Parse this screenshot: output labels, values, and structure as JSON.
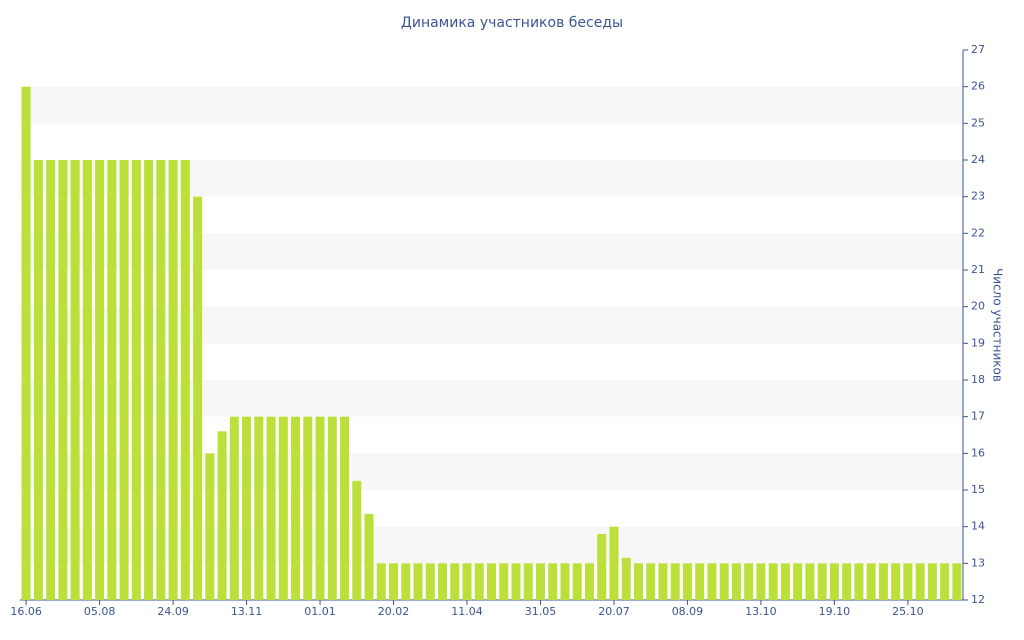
{
  "chart_data": {
    "type": "bar",
    "title": "Динамика участников беседы",
    "y_label": "Число участников",
    "categories": [
      "16.06",
      null,
      null,
      null,
      null,
      null,
      "05.08",
      null,
      null,
      null,
      null,
      null,
      "24.09",
      null,
      null,
      null,
      null,
      null,
      "13.11",
      null,
      null,
      null,
      null,
      null,
      "01.01",
      null,
      null,
      null,
      null,
      null,
      "20.02",
      null,
      null,
      null,
      null,
      null,
      "11.04",
      null,
      null,
      null,
      null,
      null,
      "31.05",
      null,
      null,
      null,
      null,
      null,
      "20.07",
      null,
      null,
      null,
      null,
      null,
      "08.09",
      null,
      null,
      null,
      null,
      null,
      "13.10",
      null,
      null,
      null,
      null,
      null,
      "19.10",
      null,
      null,
      null,
      null,
      null,
      "25.10",
      null,
      null,
      null,
      null
    ],
    "values": [
      26,
      24,
      24,
      24,
      24,
      24,
      24,
      24,
      24,
      24,
      24,
      24,
      24,
      24,
      23,
      16,
      16.6,
      17,
      17,
      17,
      17,
      17,
      17,
      17,
      17,
      17,
      17,
      15.25,
      14.35,
      13,
      13,
      13,
      13,
      13,
      13,
      13,
      13,
      13,
      13,
      13,
      13,
      13,
      13,
      13,
      13,
      13,
      13,
      13.8,
      14,
      13.15,
      13,
      13,
      13,
      13,
      13,
      13,
      13,
      13,
      13,
      13,
      13,
      13,
      13,
      13,
      13,
      13,
      13,
      13,
      13,
      13,
      13,
      13,
      13,
      13,
      13,
      13,
      13
    ],
    "color": "#bbe03a",
    "ylim": [
      12,
      27
    ],
    "yticks": [
      12,
      13,
      14,
      15,
      16,
      17,
      18,
      19,
      20,
      21,
      22,
      23,
      24,
      25,
      26,
      27
    ],
    "grid": "bands",
    "y_axis_side": "right"
  }
}
